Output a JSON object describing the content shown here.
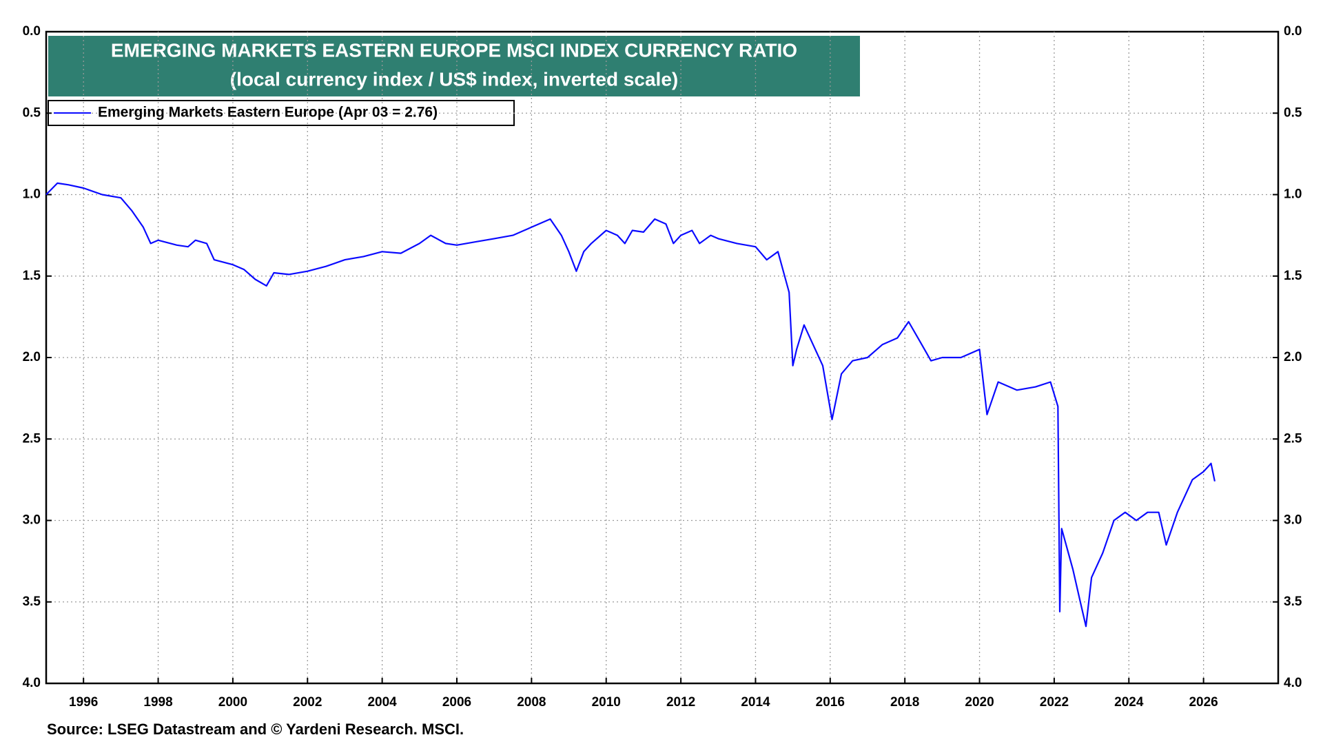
{
  "chart_data": {
    "type": "line",
    "title": "EMERGING MARKETS EASTERN EUROPE MSCI INDEX CURRENCY RATIO",
    "subtitle": "(local currency index / US$ index, inverted scale)",
    "source": "Source: LSEG Datastream and © Yardeni Research. MSCI.",
    "inverted": true,
    "grid": true,
    "legend": "top-left",
    "xlim": [
      1995,
      2028
    ],
    "xticks": [
      1996,
      1998,
      2000,
      2002,
      2004,
      2006,
      2008,
      2010,
      2012,
      2014,
      2016,
      2018,
      2020,
      2022,
      2024,
      2026
    ],
    "ylim": [
      0,
      4
    ],
    "yticks": [
      {
        "value": 0,
        "label": "0.0"
      },
      0.5,
      {
        "value": 1,
        "label": "1.0"
      },
      1.5,
      {
        "value": 2,
        "label": "2.0"
      },
      2.5,
      {
        "value": 3,
        "label": "3.0"
      },
      3.5,
      {
        "value": 4,
        "label": "4.0"
      }
    ],
    "x": [
      1995.0,
      1995.3,
      1995.6,
      1996.0,
      1996.5,
      1997.0,
      1997.3,
      1997.6,
      1997.8,
      1998.0,
      1998.5,
      1998.8,
      1999.0,
      1999.3,
      1999.5,
      2000.0,
      2000.3,
      2000.6,
      2000.9,
      2001.1,
      2001.5,
      2002.0,
      2002.5,
      2003.0,
      2003.5,
      2004.0,
      2004.5,
      2005.0,
      2005.3,
      2005.7,
      2006.0,
      2006.5,
      2007.0,
      2007.5,
      2008.0,
      2008.5,
      2008.8,
      2009.0,
      2009.2,
      2009.4,
      2009.6,
      2010.0,
      2010.3,
      2010.5,
      2010.7,
      2011.0,
      2011.3,
      2011.6,
      2011.8,
      2012.0,
      2012.3,
      2012.5,
      2012.8,
      2013.0,
      2013.5,
      2014.0,
      2014.3,
      2014.6,
      2014.9,
      2015.0,
      2015.1,
      2015.3,
      2015.5,
      2015.8,
      2016.05,
      2016.3,
      2016.6,
      2017.0,
      2017.4,
      2017.8,
      2018.1,
      2018.4,
      2018.7,
      2019.0,
      2019.5,
      2020.0,
      2020.2,
      2020.5,
      2021.0,
      2021.5,
      2021.9,
      2022.1,
      2022.15,
      2022.2,
      2022.5,
      2022.7,
      2022.85,
      2023.0,
      2023.3,
      2023.6,
      2023.9,
      2024.2,
      2024.5,
      2024.8,
      2025.0,
      2025.3,
      2025.7,
      2026.0,
      2026.2,
      2026.3
    ],
    "series": [
      {
        "name": "Emerging Markets Eastern Europe (Apr 03 = 2.76)",
        "color": "#0a0aff",
        "values": [
          1.0,
          0.93,
          0.94,
          0.96,
          1.0,
          1.02,
          1.1,
          1.2,
          1.3,
          1.28,
          1.31,
          1.32,
          1.28,
          1.3,
          1.4,
          1.43,
          1.46,
          1.52,
          1.56,
          1.48,
          1.49,
          1.47,
          1.44,
          1.4,
          1.38,
          1.35,
          1.36,
          1.3,
          1.25,
          1.3,
          1.31,
          1.29,
          1.27,
          1.25,
          1.2,
          1.15,
          1.25,
          1.35,
          1.47,
          1.35,
          1.3,
          1.22,
          1.25,
          1.3,
          1.22,
          1.23,
          1.15,
          1.18,
          1.3,
          1.25,
          1.22,
          1.3,
          1.25,
          1.27,
          1.3,
          1.32,
          1.4,
          1.35,
          1.6,
          2.05,
          1.95,
          1.8,
          1.9,
          2.05,
          2.38,
          2.1,
          2.02,
          2.0,
          1.92,
          1.88,
          1.78,
          1.9,
          2.02,
          2.0,
          2.0,
          1.95,
          2.35,
          2.15,
          2.2,
          2.18,
          2.15,
          2.3,
          3.56,
          3.05,
          3.3,
          3.5,
          3.65,
          3.35,
          3.2,
          3.0,
          2.95,
          3.0,
          2.95,
          2.95,
          3.15,
          2.95,
          2.75,
          2.7,
          2.65,
          2.76
        ]
      }
    ]
  }
}
